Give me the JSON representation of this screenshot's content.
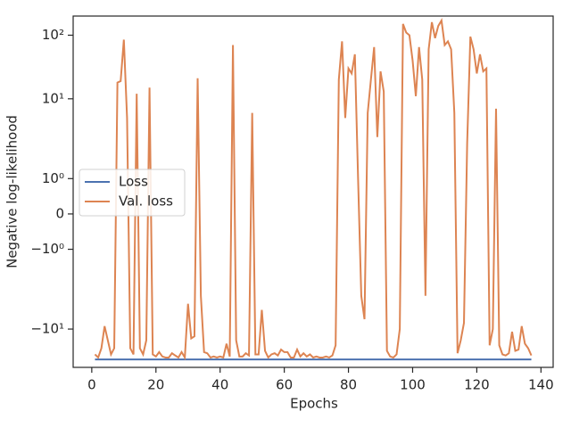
{
  "chart_data": {
    "type": "line",
    "xlabel": "Epochs",
    "ylabel": "Negative log-likelihood",
    "yscale": "symlog",
    "xlim": [
      -5.8,
      143.8
    ],
    "ylim": [
      -40,
      200
    ],
    "xticks": [
      0,
      20,
      40,
      60,
      80,
      100,
      120,
      140
    ],
    "yticks": [
      {
        "value": -10,
        "label": "−10¹"
      },
      {
        "value": -1,
        "label": "−10⁰"
      },
      0,
      {
        "value": 1,
        "label": "10⁰"
      },
      {
        "value": 10,
        "label": "10¹"
      },
      {
        "value": 100,
        "label": "10²"
      }
    ],
    "legend": "center left",
    "x": [
      1,
      2,
      3,
      4,
      5,
      6,
      7,
      8,
      9,
      10,
      11,
      12,
      13,
      14,
      15,
      16,
      17,
      18,
      19,
      20,
      21,
      22,
      23,
      24,
      25,
      26,
      27,
      28,
      29,
      30,
      31,
      32,
      33,
      34,
      35,
      36,
      37,
      38,
      39,
      40,
      41,
      42,
      43,
      44,
      45,
      46,
      47,
      48,
      49,
      50,
      51,
      52,
      53,
      54,
      55,
      56,
      57,
      58,
      59,
      60,
      61,
      62,
      63,
      64,
      65,
      66,
      67,
      68,
      69,
      70,
      71,
      72,
      73,
      74,
      75,
      76,
      77,
      78,
      79,
      80,
      81,
      82,
      83,
      84,
      85,
      86,
      87,
      88,
      89,
      90,
      91,
      92,
      93,
      94,
      95,
      96,
      97,
      98,
      99,
      100,
      101,
      102,
      103,
      104,
      105,
      106,
      107,
      108,
      109,
      110,
      111,
      112,
      113,
      114,
      115,
      116,
      117,
      118,
      119,
      120,
      121,
      122,
      123,
      124,
      125,
      126,
      127,
      128,
      129,
      130,
      131,
      132,
      133,
      134,
      135,
      136,
      137
    ],
    "series": [
      {
        "name": "Loss",
        "color": "#4c72b0",
        "values": [
          -30,
          -30,
          -30,
          -30,
          -30,
          -30,
          -30,
          -30,
          -30,
          -30,
          -30,
          -30,
          -30,
          -30,
          -30,
          -30,
          -30,
          -30,
          -30,
          -30,
          -30,
          -30,
          -30,
          -30,
          -30,
          -30,
          -30,
          -30,
          -30,
          -30,
          -30,
          -30,
          -30,
          -30,
          -30,
          -30,
          -30,
          -30,
          -30,
          -30,
          -30,
          -30,
          -30,
          -30,
          -30,
          -30,
          -30,
          -30,
          -30,
          -30,
          -30,
          -30,
          -30,
          -30,
          -30,
          -30,
          -30,
          -30,
          -30,
          -30,
          -30,
          -30,
          -30,
          -30,
          -30,
          -30,
          -30,
          -30,
          -30,
          -30,
          -30,
          -30,
          -30,
          -30,
          -30,
          -30,
          -30,
          -30,
          -30,
          -30,
          -30,
          -30,
          -30,
          -30,
          -30,
          -30,
          -30,
          -30,
          -30,
          -30,
          -30,
          -30,
          -30,
          -30,
          -30,
          -30,
          -30,
          -30,
          -30,
          -30,
          -30,
          -30,
          -30,
          -30,
          -30,
          -30,
          -30,
          -30,
          -30,
          -30,
          -30,
          -30,
          -30,
          -30,
          -30,
          -30,
          -30,
          -30,
          -30,
          -30,
          -30,
          -30,
          -30,
          -30,
          -30,
          -30,
          -30,
          -30,
          -30,
          -30,
          -30,
          -30,
          -30,
          -30,
          -30,
          -30,
          -30
        ]
      },
      {
        "name": "Val. loss",
        "color": "#dd8452",
        "values": [
          -25,
          -28,
          -20,
          -9,
          -15,
          -25,
          -20,
          18,
          19,
          85,
          5,
          -20,
          -25,
          12,
          -20,
          -25,
          -15,
          15,
          -25,
          -27,
          -23,
          -27,
          -28,
          -28,
          -24,
          -26,
          -28,
          -23,
          -28,
          -4,
          -14,
          -13,
          21,
          -3,
          -23,
          -24,
          -28,
          -27,
          -28,
          -27,
          -28,
          -17,
          -27,
          70,
          -15,
          -27,
          -27,
          -24,
          -26,
          6,
          -25,
          -25,
          -5,
          -22,
          -28,
          -25,
          -24,
          -26,
          -21,
          -23,
          -23,
          -28,
          -28,
          -21,
          -27,
          -24,
          -27,
          -25,
          -28,
          -27,
          -28,
          -28,
          -27,
          -28,
          -26,
          -18,
          20,
          80,
          5,
          30,
          25,
          50,
          1,
          -3,
          -7,
          6,
          20,
          65,
          2.5,
          27,
          13,
          -22,
          -27,
          -28,
          -25,
          -10,
          150,
          110,
          100,
          40,
          11,
          65,
          20,
          -3,
          60,
          160,
          90,
          140,
          170,
          70,
          80,
          60,
          6,
          -24,
          -15,
          -8,
          2,
          95,
          60,
          25,
          50,
          27,
          30,
          -18,
          -10,
          7,
          -18,
          -25,
          -26,
          -24,
          -11,
          -22,
          -21,
          -9,
          -17,
          -20,
          -26
        ]
      }
    ]
  }
}
